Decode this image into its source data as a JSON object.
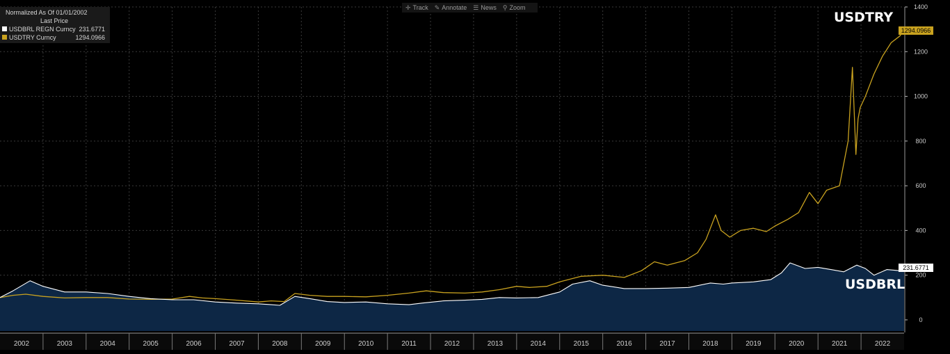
{
  "toolbar": {
    "items": [
      {
        "icon": "crosshair-icon",
        "label": "Track"
      },
      {
        "icon": "pencil-icon",
        "label": "Annotate"
      },
      {
        "icon": "news-icon",
        "label": "News"
      },
      {
        "icon": "magnifier-icon",
        "label": "Zoom"
      }
    ]
  },
  "legend": {
    "title": "Normalized As Of 01/01/2002",
    "subtitle": "Last Price",
    "rows": [
      {
        "name": "USDBRL REGN Curncy",
        "value": "231.6771",
        "color": "#ffffff"
      },
      {
        "name": "USDTRY Curncy",
        "value": "1294.0966",
        "color": "#c9a21f"
      }
    ]
  },
  "annotations": {
    "usdtry": "USDTRY",
    "usdbrl": "USDBRL"
  },
  "last_value_tags": {
    "usdtry": "1294.0966",
    "usdbrl": "231.6771"
  },
  "colors": {
    "background": "#000000",
    "usdtry_line": "#c9a21f",
    "usdbrl_line": "#ffffff",
    "usdbrl_fill": "#0d2745",
    "grid": "#3a3a3a"
  },
  "chart_data": {
    "type": "line",
    "title": "",
    "xlabel": "",
    "ylabel": "",
    "ylim": [
      -50,
      1400
    ],
    "yticks": [
      0,
      200,
      400,
      600,
      800,
      1000,
      1200,
      1400
    ],
    "xlim": [
      2002,
      2023
    ],
    "xticks": [
      "2002",
      "2003",
      "2004",
      "2005",
      "2006",
      "2007",
      "2008",
      "2009",
      "2010",
      "2011",
      "2012",
      "2013",
      "2014",
      "2015",
      "2016",
      "2017",
      "2018",
      "2019",
      "2020",
      "2021",
      "2022"
    ],
    "grid": true,
    "legend_position": "top-left",
    "series": [
      {
        "name": "USDTRY Curncy",
        "x": [
          2002.0,
          2002.3,
          2002.6,
          2003.0,
          2003.5,
          2004.0,
          2004.5,
          2005.0,
          2005.5,
          2006.0,
          2006.4,
          2006.7,
          2007.0,
          2007.5,
          2008.0,
          2008.3,
          2008.6,
          2008.85,
          2009.2,
          2009.6,
          2010.0,
          2010.5,
          2011.0,
          2011.5,
          2011.9,
          2012.3,
          2012.8,
          2013.2,
          2013.6,
          2014.0,
          2014.3,
          2014.7,
          2015.0,
          2015.5,
          2016.0,
          2016.5,
          2016.9,
          2017.2,
          2017.5,
          2017.9,
          2018.2,
          2018.4,
          2018.62,
          2018.75,
          2018.95,
          2019.2,
          2019.5,
          2019.8,
          2020.0,
          2020.3,
          2020.55,
          2020.8,
          2021.0,
          2021.2,
          2021.5,
          2021.7,
          2021.8,
          2021.88,
          2021.93,
          2021.98,
          2022.1,
          2022.3,
          2022.5,
          2022.7,
          2022.9,
          2023.0
        ],
        "y": [
          100,
          110,
          115,
          105,
          98,
          100,
          100,
          93,
          92,
          93,
          105,
          98,
          95,
          88,
          80,
          85,
          82,
          118,
          110,
          105,
          105,
          103,
          110,
          120,
          130,
          122,
          120,
          125,
          135,
          150,
          145,
          150,
          170,
          195,
          200,
          190,
          220,
          260,
          245,
          265,
          300,
          360,
          470,
          400,
          370,
          400,
          410,
          395,
          420,
          450,
          480,
          570,
          520,
          580,
          600,
          800,
          1130,
          740,
          900,
          950,
          1000,
          1100,
          1180,
          1240,
          1270,
          1294.0966
        ]
      },
      {
        "name": "USDBRL REGN Curncy",
        "x": [
          2002.0,
          2002.3,
          2002.7,
          2003.0,
          2003.5,
          2004.0,
          2004.5,
          2005.0,
          2005.5,
          2006.0,
          2006.5,
          2007.0,
          2007.5,
          2008.0,
          2008.3,
          2008.5,
          2008.85,
          2009.2,
          2009.6,
          2010.0,
          2010.5,
          2011.0,
          2011.5,
          2011.8,
          2012.3,
          2012.8,
          2013.2,
          2013.6,
          2014.0,
          2014.5,
          2015.0,
          2015.3,
          2015.7,
          2016.0,
          2016.5,
          2017.0,
          2017.5,
          2018.0,
          2018.5,
          2018.8,
          2019.0,
          2019.5,
          2019.9,
          2020.15,
          2020.35,
          2020.7,
          2021.0,
          2021.3,
          2021.6,
          2021.9,
          2022.1,
          2022.3,
          2022.6,
          2022.9,
          2023.0
        ],
        "y": [
          100,
          130,
          175,
          150,
          125,
          125,
          118,
          105,
          95,
          90,
          90,
          80,
          75,
          72,
          68,
          65,
          105,
          95,
          82,
          78,
          80,
          72,
          68,
          75,
          85,
          88,
          92,
          100,
          98,
          100,
          125,
          160,
          175,
          155,
          140,
          140,
          142,
          145,
          165,
          160,
          165,
          170,
          180,
          210,
          255,
          230,
          235,
          225,
          215,
          245,
          230,
          200,
          225,
          220,
          231.6771
        ]
      }
    ]
  }
}
